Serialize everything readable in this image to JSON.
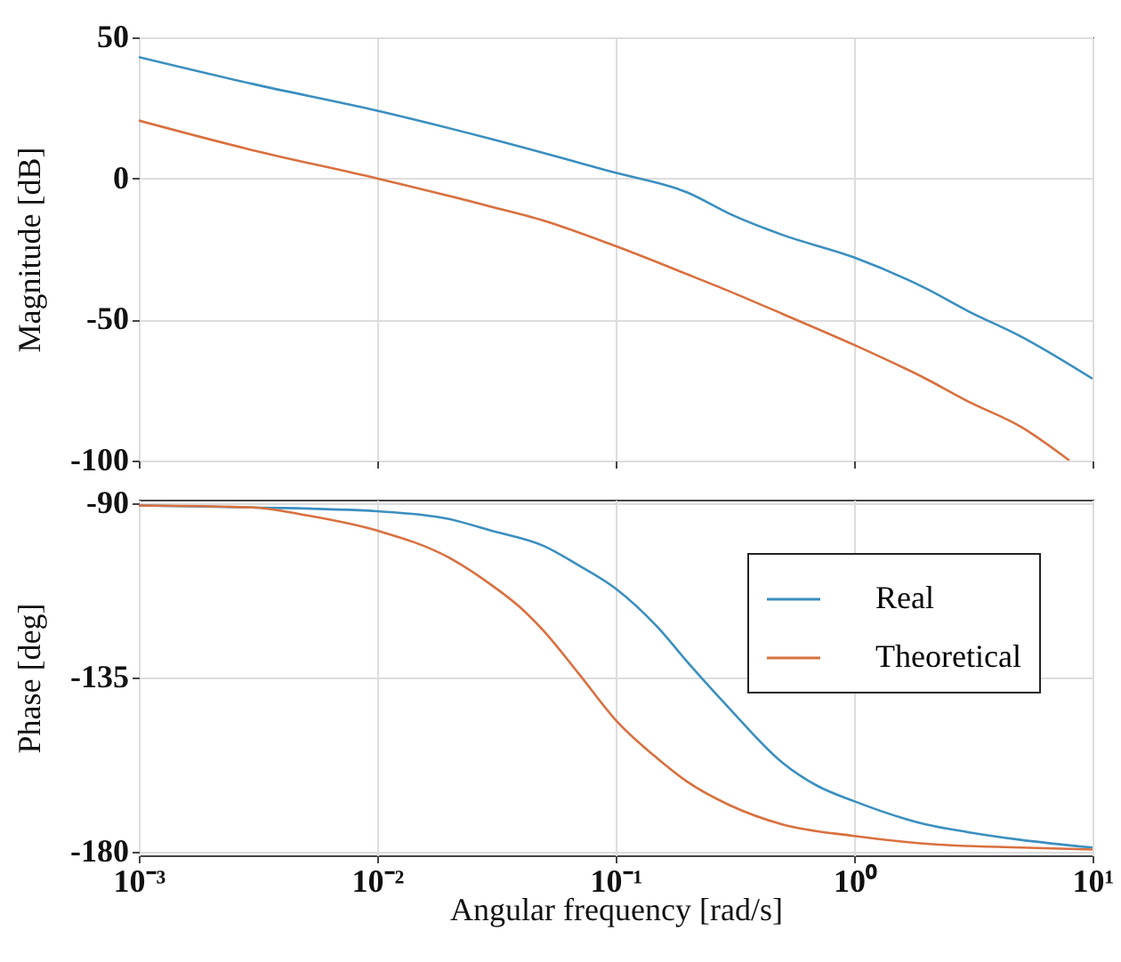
{
  "chart_data": [
    {
      "type": "line",
      "ylabel": "Magnitude [dB]",
      "log": "x",
      "grid": true,
      "tick_labels": "y",
      "xlim": [
        0.001,
        10
      ],
      "xticks": [
        {
          "value": 0.001,
          "label": null
        },
        {
          "value": 0.01,
          "label": null
        },
        {
          "value": 0.1,
          "label": null
        },
        {
          "value": 1,
          "label": null
        },
        {
          "value": 10,
          "label": null
        }
      ],
      "ylim": [
        -100,
        50
      ],
      "yticks": [
        -100,
        -50,
        0,
        50
      ],
      "series": [
        {
          "color": "#3a8fc0",
          "x": [
            0.001,
            0.003,
            0.01,
            0.03,
            0.1,
            0.2,
            0.3,
            0.5,
            1,
            2,
            3,
            5,
            10
          ],
          "values": [
            43,
            33.5,
            24,
            14,
            2,
            -5,
            -12.5,
            -20,
            -28,
            -39,
            -47,
            -56,
            -71
          ]
        },
        {
          "color": "#d9703f",
          "x": [
            0.001,
            0.003,
            0.01,
            0.03,
            0.05,
            0.1,
            0.2,
            0.3,
            0.5,
            1,
            2,
            3,
            5,
            8
          ],
          "values": [
            20.5,
            10,
            0,
            -10,
            -15,
            -24,
            -34,
            -40,
            -48,
            -59,
            -71,
            -79,
            -88,
            -100
          ]
        }
      ]
    },
    {
      "type": "line",
      "xlabel": "Angular frequency [rad/s]",
      "ylabel": "Phase [deg]",
      "log": "x",
      "grid": true,
      "legend": "top right",
      "xlim": [
        0.001,
        10
      ],
      "xticks": [
        {
          "value": 0.001,
          "label": "10⁻³"
        },
        {
          "value": 0.01,
          "label": "10⁻²"
        },
        {
          "value": 0.1,
          "label": "10⁻¹"
        },
        {
          "value": 1,
          "label": "10⁰"
        },
        {
          "value": 10,
          "label": "10¹"
        }
      ],
      "ylim": [
        -181,
        -89
      ],
      "yticks": [
        -180,
        -135,
        -90
      ],
      "series": [
        {
          "name": "Real",
          "color": "#3a8fc0",
          "x": [
            0.001,
            0.003,
            0.01,
            0.02,
            0.03,
            0.05,
            0.07,
            0.1,
            0.15,
            0.2,
            0.3,
            0.5,
            0.7,
            1,
            2,
            3,
            5,
            10
          ],
          "values": [
            -90.5,
            -91,
            -92,
            -94,
            -97,
            -101,
            -106,
            -112,
            -122,
            -131,
            -143,
            -157,
            -163,
            -167,
            -173,
            -175,
            -177,
            -179
          ]
        },
        {
          "name": "Theoretical",
          "color": "#d9703f",
          "x": [
            0.001,
            0.003,
            0.005,
            0.01,
            0.02,
            0.03,
            0.04,
            0.05,
            0.07,
            0.1,
            0.15,
            0.2,
            0.3,
            0.5,
            1,
            2,
            5,
            10
          ],
          "values": [
            -90.5,
            -91,
            -93,
            -97,
            -104,
            -111,
            -117,
            -123,
            -134,
            -146,
            -156,
            -162,
            -168,
            -173,
            -176,
            -178,
            -179,
            -179.5
          ]
        }
      ]
    }
  ]
}
